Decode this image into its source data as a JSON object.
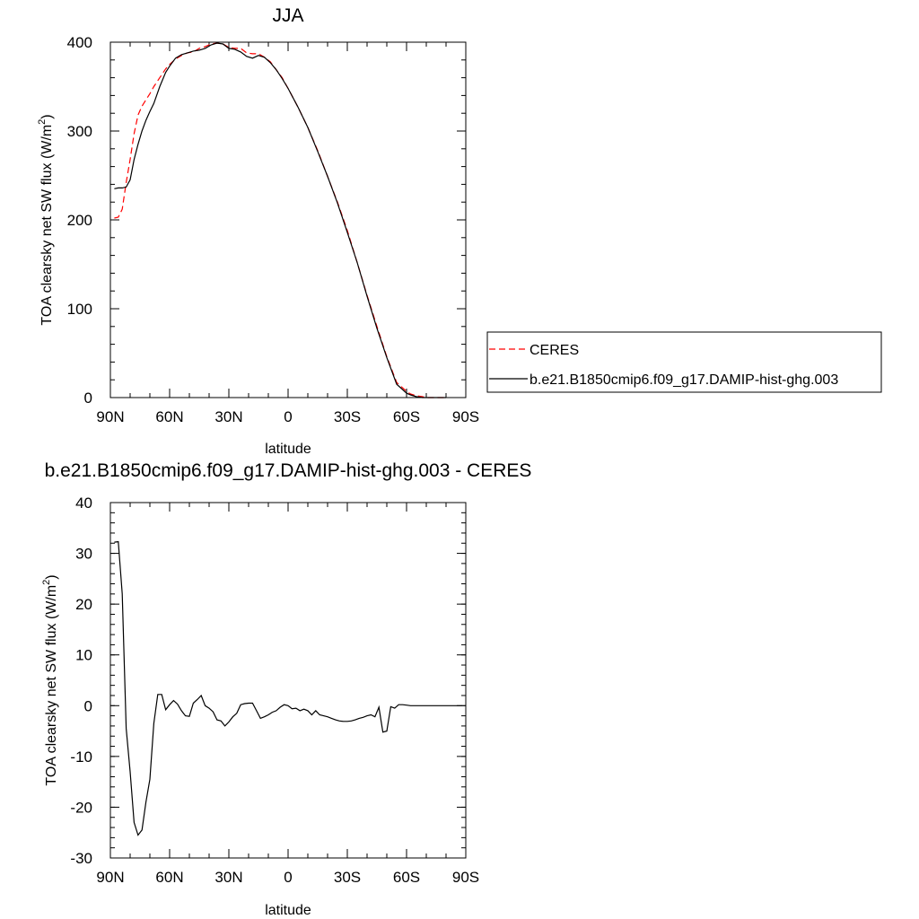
{
  "chart_data": [
    {
      "type": "line",
      "title": "JJA",
      "xlabel": "latitude",
      "ylabel": "TOA clearsky net SW flux (W/m",
      "ylabel_sup": "2",
      "ylabel_close": ")",
      "xlim": [
        90,
        -90
      ],
      "ylim": [
        0,
        400
      ],
      "xticks": [
        90,
        60,
        30,
        0,
        -30,
        -60,
        -90
      ],
      "xtick_labels": [
        "90N",
        "60N",
        "30N",
        "0",
        "30S",
        "60S",
        "90S"
      ],
      "yticks": [
        0,
        100,
        200,
        300,
        400
      ],
      "ytick_labels": [
        "0",
        "100",
        "200",
        "300",
        "400"
      ],
      "legend": {
        "placement": "right",
        "entries": [
          "CERES",
          "b.e21.B1850cmip6.f09_g17.DAMIP-hist-ghg.003"
        ]
      },
      "series": [
        {
          "name": "CERES",
          "color": "#ff0000",
          "dash": true,
          "x": [
            88,
            86,
            84,
            82,
            80,
            78,
            76,
            74,
            72,
            70,
            68,
            65,
            62,
            60,
            57,
            54,
            51,
            48,
            45,
            42,
            39,
            36,
            33,
            30,
            27,
            24,
            21,
            18,
            15,
            12,
            9,
            6,
            3,
            0,
            -5,
            -10,
            -15,
            -20,
            -25,
            -30,
            -35,
            -40,
            -45,
            -50,
            -55,
            -60,
            -62,
            -65,
            -68,
            -70,
            -72,
            -75,
            -78,
            -80
          ],
          "values": [
            202,
            203,
            212,
            242,
            268,
            297,
            318,
            328,
            335,
            342,
            350,
            360,
            370,
            375,
            381,
            385,
            388,
            389,
            393,
            395,
            398,
            399,
            398,
            394,
            393,
            393,
            388,
            387,
            387,
            383,
            378,
            369,
            360,
            348,
            327,
            304,
            278,
            249,
            220,
            188,
            152,
            115,
            80,
            46,
            17,
            7,
            4,
            2,
            1,
            0,
            0,
            0,
            0,
            0
          ]
        },
        {
          "name": "b.e21.B1850cmip6.f09_g17.DAMIP-hist-ghg.003",
          "color": "#000000",
          "dash": false,
          "x": [
            88,
            86,
            84,
            82,
            80,
            78,
            76,
            74,
            72,
            70,
            68,
            65,
            62,
            60,
            57,
            54,
            51,
            48,
            45,
            42,
            39,
            36,
            33,
            30,
            27,
            24,
            21,
            18,
            15,
            12,
            9,
            6,
            3,
            0,
            -5,
            -10,
            -15,
            -20,
            -25,
            -30,
            -35,
            -40,
            -45,
            -50,
            -55,
            -60,
            -62,
            -65,
            -68,
            -70,
            -72,
            -75,
            -78,
            -80
          ],
          "values": [
            235,
            236,
            236,
            237,
            245,
            268,
            285,
            300,
            312,
            322,
            331,
            350,
            366,
            373,
            382,
            386,
            388,
            390,
            391,
            393,
            397,
            399,
            398,
            393,
            392,
            389,
            384,
            382,
            385,
            383,
            377,
            369,
            359,
            348,
            327,
            304,
            277,
            249,
            219,
            186,
            152,
            114,
            78,
            45,
            15,
            5,
            3,
            1,
            0,
            0,
            0,
            0,
            0,
            0
          ]
        }
      ]
    },
    {
      "type": "line",
      "title": "b.e21.B1850cmip6.f09_g17.DAMIP-hist-ghg.003 - CERES",
      "xlabel": "latitude",
      "ylabel": "TOA clearsky net SW flux (W/m",
      "ylabel_sup": "2",
      "ylabel_close": ")",
      "xlim": [
        90,
        -90
      ],
      "ylim": [
        -30,
        40
      ],
      "xticks": [
        90,
        60,
        30,
        0,
        -30,
        -60,
        -90
      ],
      "xtick_labels": [
        "90N",
        "60N",
        "30N",
        "0",
        "30S",
        "60S",
        "90S"
      ],
      "yticks": [
        -30,
        -20,
        -10,
        0,
        10,
        20,
        30,
        40
      ],
      "ytick_labels": [
        "-30",
        "-20",
        "-10",
        "0",
        "10",
        "20",
        "30",
        "40"
      ],
      "series": [
        {
          "color": "#000000",
          "dash": false,
          "x": [
            88,
            86,
            84,
            82,
            80,
            78,
            76,
            74,
            72,
            70,
            68,
            66,
            64,
            62,
            60,
            58,
            56,
            54,
            52,
            50,
            48,
            46,
            44,
            42,
            40,
            38,
            36,
            34,
            32,
            30,
            28,
            26,
            24,
            22,
            20,
            18,
            16,
            14,
            12,
            10,
            8,
            6,
            4,
            2,
            0,
            -2,
            -4,
            -6,
            -8,
            -10,
            -12,
            -14,
            -16,
            -18,
            -20,
            -22,
            -24,
            -26,
            -28,
            -30,
            -32,
            -34,
            -36,
            -38,
            -40,
            -42,
            -44,
            -46,
            -48,
            -50,
            -52,
            -54,
            -56,
            -58,
            -60,
            -62,
            -64,
            -66,
            -68,
            -70,
            -72,
            -74,
            -76,
            -78,
            -80,
            -82,
            -84,
            -86,
            -88
          ],
          "values": [
            32.2,
            32.3,
            22.0,
            -4.5,
            -13.0,
            -23.0,
            -25.5,
            -24.5,
            -19.0,
            -14.5,
            -3.5,
            2.2,
            2.2,
            -0.8,
            0.2,
            1.0,
            0.3,
            -1.0,
            -2.0,
            -2.1,
            0.5,
            1.2,
            2.0,
            0.0,
            -0.5,
            -1.2,
            -2.8,
            -3.0,
            -4.0,
            -3.2,
            -2.2,
            -1.5,
            0.2,
            0.4,
            0.5,
            0.5,
            -1.0,
            -2.5,
            -2.2,
            -1.8,
            -1.3,
            -1.0,
            -0.3,
            0.2,
            0.0,
            -0.6,
            -0.5,
            -1.0,
            -0.7,
            -1.0,
            -1.8,
            -1.0,
            -1.8,
            -2.0,
            -2.2,
            -2.5,
            -2.8,
            -3.0,
            -3.1,
            -3.1,
            -3.0,
            -2.8,
            -2.5,
            -2.3,
            -2.0,
            -1.8,
            -2.2,
            -0.3,
            -5.2,
            -5.0,
            -0.2,
            -0.5,
            0.2,
            0.2,
            0.1,
            0.0,
            0.0,
            0.0,
            0.0,
            0.0,
            0.0,
            0.0,
            0.0,
            0.0,
            0.0,
            0.0,
            0.0,
            0.0,
            0.0
          ]
        }
      ]
    }
  ]
}
